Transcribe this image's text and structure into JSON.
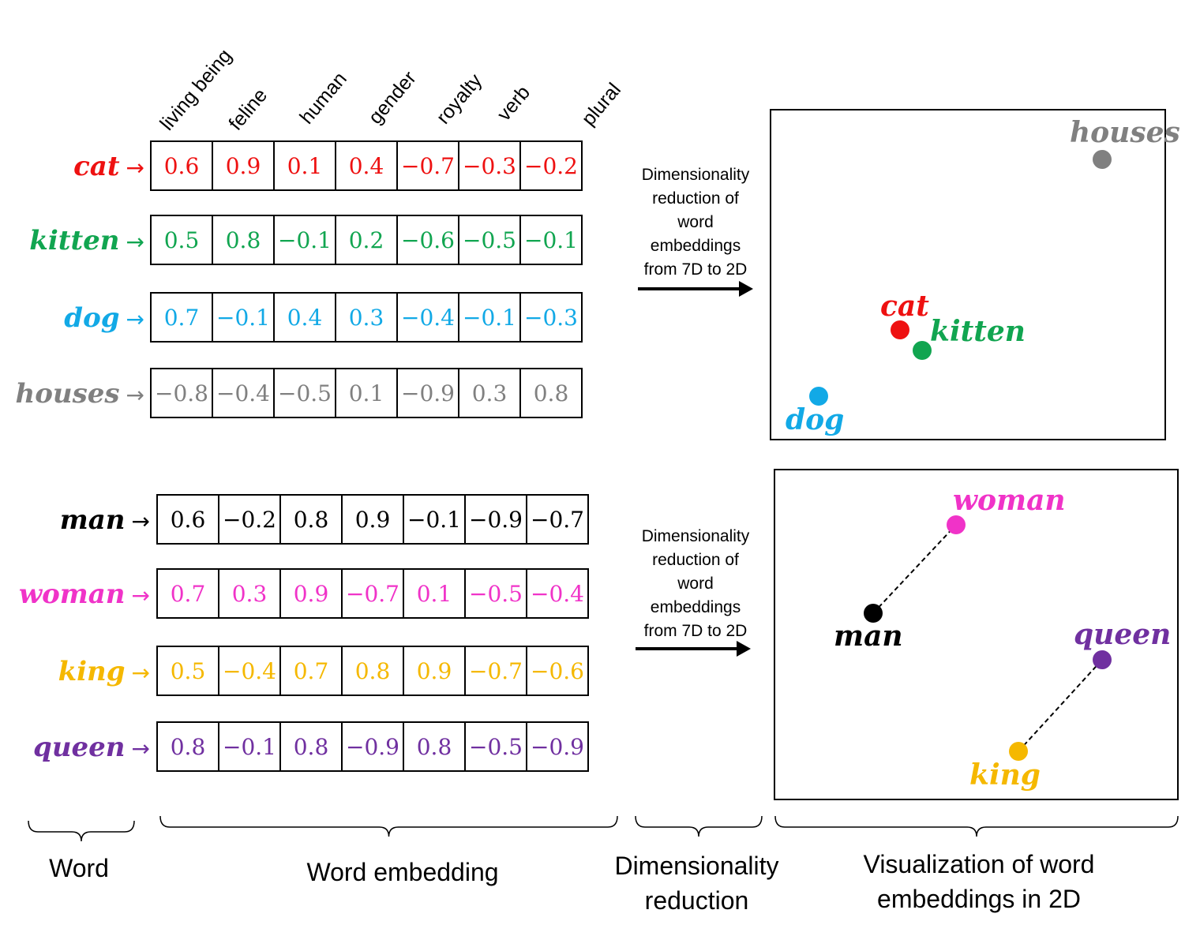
{
  "dimensions": [
    "living being",
    "feline",
    "human",
    "gender",
    "royalty",
    "verb",
    "plural"
  ],
  "arrow_glyph": "→",
  "groups": [
    {
      "rows": [
        {
          "word": "cat",
          "color": "#ee1111",
          "values": [
            "0.6",
            "0.9",
            "0.1",
            "0.4",
            "−0.7",
            "−0.3",
            "−0.2"
          ]
        },
        {
          "word": "kitten",
          "color": "#11a550",
          "values": [
            "0.5",
            "0.8",
            "−0.1",
            "0.2",
            "−0.6",
            "−0.5",
            "−0.1"
          ]
        },
        {
          "word": "dog",
          "color": "#12a9e6",
          "values": [
            "0.7",
            "−0.1",
            "0.4",
            "0.3",
            "−0.4",
            "−0.1",
            "−0.3"
          ]
        },
        {
          "word": "houses",
          "color": "#808080",
          "values": [
            "−0.8",
            "−0.4",
            "−0.5",
            "0.1",
            "−0.9",
            "0.3",
            "0.8"
          ]
        }
      ],
      "reduction_label": [
        "Dimensionality",
        "reduction of",
        "word",
        "embeddings",
        "from 7D to 2D"
      ]
    },
    {
      "rows": [
        {
          "word": "man",
          "color": "#000000",
          "values": [
            "0.6",
            "−0.2",
            "0.8",
            "0.9",
            "−0.1",
            "−0.9",
            "−0.7"
          ]
        },
        {
          "word": "woman",
          "color": "#f033c8",
          "values": [
            "0.7",
            "0.3",
            "0.9",
            "−0.7",
            "0.1",
            "−0.5",
            "−0.4"
          ]
        },
        {
          "word": "king",
          "color": "#f5b800",
          "values": [
            "0.5",
            "−0.4",
            "0.7",
            "0.8",
            "0.9",
            "−0.7",
            "−0.6"
          ]
        },
        {
          "word": "queen",
          "color": "#7030a0",
          "values": [
            "0.8",
            "−0.1",
            "0.8",
            "−0.9",
            "0.8",
            "−0.5",
            "−0.9"
          ]
        }
      ],
      "reduction_label": [
        "Dimensionality",
        "reduction of",
        "word",
        "embeddings",
        "from 7D to 2D"
      ]
    }
  ],
  "plots": [
    {
      "points": [
        {
          "label": "houses",
          "color": "#808080"
        },
        {
          "label": "cat",
          "color": "#ee1111"
        },
        {
          "label": "kitten",
          "color": "#11a550"
        },
        {
          "label": "dog",
          "color": "#12a9e6"
        }
      ]
    },
    {
      "points": [
        {
          "label": "woman",
          "color": "#f033c8"
        },
        {
          "label": "man",
          "color": "#000000"
        },
        {
          "label": "queen",
          "color": "#7030a0"
        },
        {
          "label": "king",
          "color": "#f5b800"
        }
      ],
      "dashed_links": [
        [
          "man",
          "woman"
        ],
        [
          "king",
          "queen"
        ]
      ]
    }
  ],
  "sections": [
    {
      "label_lines": [
        "Word"
      ]
    },
    {
      "label_lines": [
        "Word embedding"
      ]
    },
    {
      "label_lines": [
        "Dimensionality",
        "reduction"
      ]
    },
    {
      "label_lines": [
        "Visualization of word",
        "embeddings  in 2D"
      ]
    }
  ]
}
